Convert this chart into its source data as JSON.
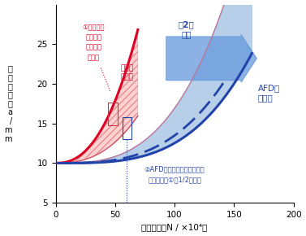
{
  "xlabel": "繰返し数，N / ×10⁴回",
  "ylabel": "き\n裂\n長\nさ\n，\na\n/\nm\nm",
  "xlim": [
    0,
    200
  ],
  "ylim": [
    5,
    30
  ],
  "xticks": [
    0,
    50,
    100,
    150,
    200
  ],
  "yticks": [
    5,
    10,
    15,
    20,
    25
  ],
  "background_color": "#ffffff",
  "general_steel_color": "#dd0022",
  "afd_fill_color": "#b8cfea",
  "general_fill_color": "#ffcccc",
  "arrow_color": "#6699dd",
  "annot_color_red": "#dd0022",
  "annot_color_blue": "#2244aa",
  "text_approx": "約2倍\n改善",
  "text_general_dist": "一般鋼\nの分布",
  "text_afd_dist": "AFD鋼\nの分布",
  "text_annot1_l1": "①一般鋼の",
  "text_annot1_l2": "疲労き裂",
  "text_annot1_l3": "伝播速度",
  "text_annot1_l4": "の上限",
  "text_annot2_l1": "②AFD鋼の疲労き裂伝播速度",
  "text_annot2_l2": "（目標値，①の1/2以下）"
}
